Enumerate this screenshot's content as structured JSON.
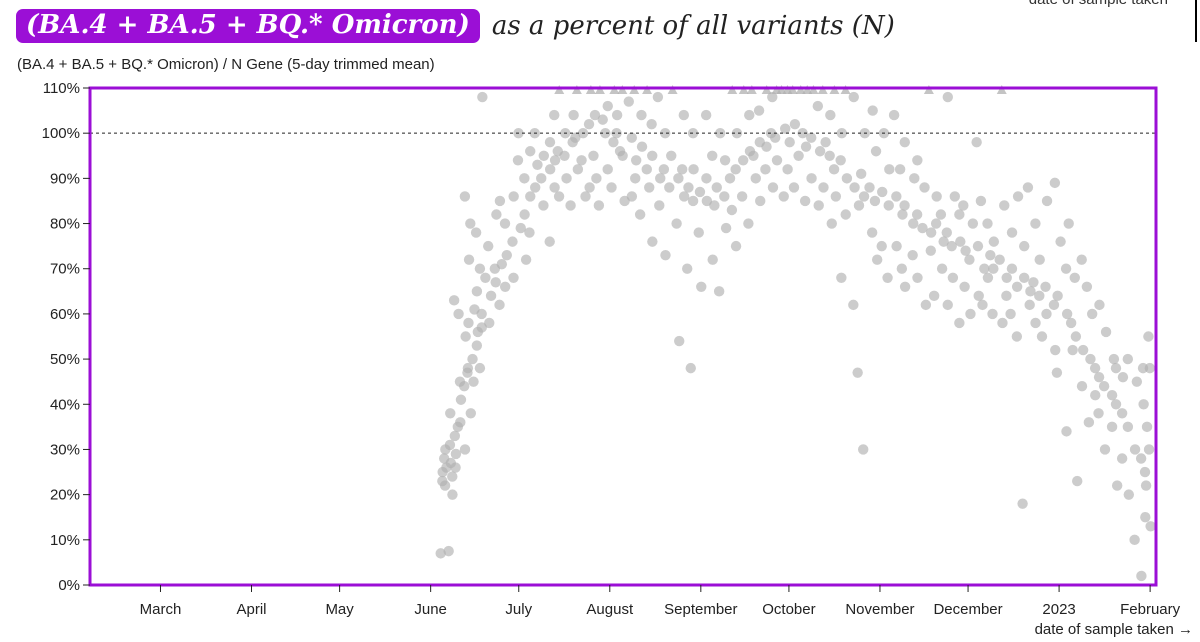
{
  "title": {
    "highlight": "(BA.4 + BA.5 + BQ.* Omicron)",
    "rest": "as a percent of all variants (N)"
  },
  "top_cut_label": "date of sample taken",
  "chart_data": {
    "type": "scatter",
    "title": "(BA.4 + BA.5 + BQ.* Omicron) as a percent of all variants (N)",
    "ylabel": "(BA.4 + BA.5 + BQ.* Omicron) / N Gene (5-day trimmed mean)",
    "xlabel": "date of sample taken →",
    "x_unit": "days since 2022-03-01",
    "xlim": [
      -24,
      339
    ],
    "ylim": [
      0,
      110
    ],
    "reference_line": 100,
    "cap_note": "values at 110% are clipped and drawn as triangles",
    "yticks": [
      {
        "v": 0,
        "label": "0%"
      },
      {
        "v": 10,
        "label": "10%"
      },
      {
        "v": 20,
        "label": "20%"
      },
      {
        "v": 30,
        "label": "30%"
      },
      {
        "v": 40,
        "label": "40%"
      },
      {
        "v": 50,
        "label": "50%"
      },
      {
        "v": 60,
        "label": "60%"
      },
      {
        "v": 70,
        "label": "70%"
      },
      {
        "v": 80,
        "label": "80%"
      },
      {
        "v": 90,
        "label": "90%"
      },
      {
        "v": 100,
        "label": "100%"
      },
      {
        "v": 110,
        "label": "110%"
      }
    ],
    "xticks": [
      {
        "d": 0,
        "label": "March"
      },
      {
        "d": 31,
        "label": "April"
      },
      {
        "d": 61,
        "label": "May"
      },
      {
        "d": 92,
        "label": "June"
      },
      {
        "d": 122,
        "label": "July"
      },
      {
        "d": 153,
        "label": "August"
      },
      {
        "d": 184,
        "label": "September"
      },
      {
        "d": 214,
        "label": "October"
      },
      {
        "d": 245,
        "label": "November"
      },
      {
        "d": 275,
        "label": "December"
      },
      {
        "d": 306,
        "label": "2023"
      },
      {
        "d": 337,
        "label": "February"
      }
    ],
    "colors": {
      "frame": "#9b0fd6",
      "points": "#b0b0b0"
    },
    "points": [
      [
        96,
        [
          23,
          25,
          7
        ]
      ],
      [
        97,
        [
          28,
          22,
          30
        ]
      ],
      [
        98,
        [
          26,
          31,
          7.5
        ]
      ],
      [
        99,
        [
          27,
          38,
          20
        ]
      ],
      [
        100,
        [
          33,
          24,
          63
        ]
      ],
      [
        101,
        [
          29,
          35,
          26
        ]
      ],
      [
        102,
        [
          36,
          45,
          60
        ]
      ],
      [
        103,
        [
          41,
          86,
          30
        ]
      ],
      [
        104,
        [
          44,
          55,
          48
        ]
      ],
      [
        105,
        [
          47,
          58,
          72
        ]
      ],
      [
        106,
        [
          50,
          38,
          80
        ]
      ],
      [
        107,
        [
          53,
          61,
          45
        ]
      ],
      [
        108,
        [
          56,
          65,
          78
        ]
      ],
      [
        109,
        [
          57,
          48,
          70
        ]
      ],
      [
        110,
        [
          60,
          68,
          108
        ]
      ],
      [
        112,
        [
          64,
          58,
          75
        ]
      ],
      [
        114,
        [
          67,
          70,
          82
        ]
      ],
      [
        116,
        [
          71,
          62,
          85
        ]
      ],
      [
        118,
        [
          73,
          66,
          80
        ]
      ],
      [
        120,
        [
          76,
          86,
          68
        ]
      ],
      [
        122,
        [
          79,
          94,
          100
        ]
      ],
      [
        124,
        [
          82,
          90,
          72
        ]
      ],
      [
        126,
        [
          86,
          96,
          78
        ]
      ],
      [
        128,
        [
          88,
          93,
          100
        ]
      ],
      [
        130,
        [
          90,
          84,
          95
        ]
      ],
      [
        132,
        [
          92,
          98,
          76
        ]
      ],
      [
        134,
        [
          94,
          88,
          104
        ]
      ],
      [
        136,
        [
          96,
          86,
          110
        ]
      ],
      [
        138,
        [
          95,
          100,
          90
        ]
      ],
      [
        140,
        [
          98,
          84,
          104
        ]
      ],
      [
        142,
        [
          99,
          110,
          92
        ]
      ],
      [
        144,
        [
          100,
          94,
          86
        ]
      ],
      [
        146,
        [
          102,
          110,
          88
        ]
      ],
      [
        148,
        [
          104,
          95,
          90
        ]
      ],
      [
        150,
        [
          103,
          110,
          84
        ]
      ],
      [
        152,
        [
          100,
          106,
          92
        ]
      ],
      [
        154,
        [
          98,
          110,
          88
        ]
      ],
      [
        156,
        [
          96,
          104,
          100
        ]
      ],
      [
        158,
        [
          95,
          110,
          85
        ]
      ],
      [
        160,
        [
          99,
          86,
          107
        ]
      ],
      [
        162,
        [
          94,
          110,
          90
        ]
      ],
      [
        164,
        [
          97,
          82,
          104
        ]
      ],
      [
        166,
        [
          92,
          110,
          88
        ]
      ],
      [
        168,
        [
          95,
          76,
          102
        ]
      ],
      [
        170,
        [
          90,
          108,
          84
        ]
      ],
      [
        172,
        [
          92,
          73,
          100
        ]
      ],
      [
        174,
        [
          88,
          110,
          95
        ]
      ],
      [
        176,
        [
          90,
          80,
          54
        ]
      ],
      [
        178,
        [
          86,
          104,
          92
        ]
      ],
      [
        180,
        [
          88,
          70,
          48
        ]
      ],
      [
        182,
        [
          85,
          100,
          92
        ]
      ],
      [
        184,
        [
          87,
          78,
          66
        ]
      ],
      [
        186,
        [
          90,
          104,
          85
        ]
      ],
      [
        188,
        [
          84,
          72,
          95
        ]
      ],
      [
        190,
        [
          88,
          100,
          65
        ]
      ],
      [
        192,
        [
          86,
          79,
          94
        ]
      ],
      [
        194,
        [
          90,
          110,
          83
        ]
      ],
      [
        196,
        [
          92,
          75,
          100
        ]
      ],
      [
        198,
        [
          94,
          110,
          86
        ]
      ],
      [
        200,
        [
          96,
          80,
          104
        ]
      ],
      [
        202,
        [
          95,
          110,
          90
        ]
      ],
      [
        204,
        [
          98,
          85,
          105
        ]
      ],
      [
        206,
        [
          97,
          110,
          92
        ]
      ],
      [
        208,
        [
          100,
          88,
          108
        ]
      ],
      [
        210,
        [
          99,
          110,
          94
        ]
      ],
      [
        212,
        [
          101,
          86,
          110
        ]
      ],
      [
        214,
        [
          98,
          110,
          92
        ]
      ],
      [
        216,
        [
          102,
          88,
          110
        ]
      ],
      [
        218,
        [
          100,
          110,
          95
        ]
      ],
      [
        220,
        [
          97,
          85,
          110
        ]
      ],
      [
        222,
        [
          99,
          110,
          90
        ]
      ],
      [
        224,
        [
          96,
          84,
          106
        ]
      ],
      [
        226,
        [
          98,
          110,
          88
        ]
      ],
      [
        228,
        [
          95,
          80,
          104
        ]
      ],
      [
        230,
        [
          92,
          110,
          86
        ]
      ],
      [
        232,
        [
          94,
          68,
          100
        ]
      ],
      [
        234,
        [
          90,
          110,
          82
        ]
      ],
      [
        236,
        [
          88,
          62,
          108
        ]
      ],
      [
        238,
        [
          91,
          47,
          84
        ]
      ],
      [
        240,
        [
          86,
          100,
          30
        ]
      ],
      [
        242,
        [
          88,
          78,
          105
        ]
      ],
      [
        244,
        [
          85,
          72,
          96
        ]
      ],
      [
        246,
        [
          87,
          75,
          100
        ]
      ],
      [
        248,
        [
          84,
          68,
          92
        ]
      ],
      [
        250,
        [
          86,
          75,
          104
        ]
      ],
      [
        252,
        [
          82,
          70,
          92
        ]
      ],
      [
        254,
        [
          84,
          66,
          98
        ]
      ],
      [
        256,
        [
          80,
          73,
          90
        ]
      ],
      [
        258,
        [
          82,
          68,
          94
        ]
      ],
      [
        260,
        [
          79,
          62,
          88
        ]
      ],
      [
        262,
        [
          78,
          74,
          110
        ]
      ],
      [
        264,
        [
          80,
          64,
          86
        ]
      ],
      [
        266,
        [
          76,
          70,
          82
        ]
      ],
      [
        268,
        [
          78,
          62,
          108
        ]
      ],
      [
        270,
        [
          75,
          68,
          86
        ]
      ],
      [
        272,
        [
          76,
          58,
          82
        ]
      ],
      [
        274,
        [
          74,
          66,
          84
        ]
      ],
      [
        276,
        [
          72,
          60,
          80
        ]
      ],
      [
        278,
        [
          75,
          64,
          98
        ]
      ],
      [
        280,
        [
          70,
          62,
          85
        ]
      ],
      [
        282,
        [
          73,
          68,
          80
        ]
      ],
      [
        284,
        [
          70,
          60,
          76
        ]
      ],
      [
        286,
        [
          72,
          58,
          110
        ]
      ],
      [
        288,
        [
          68,
          64,
          84
        ]
      ],
      [
        290,
        [
          70,
          60,
          78
        ]
      ],
      [
        292,
        [
          66,
          55,
          86
        ]
      ],
      [
        294,
        [
          68,
          18,
          75
        ]
      ],
      [
        296,
        [
          65,
          62,
          88
        ]
      ],
      [
        298,
        [
          67,
          58,
          80
        ]
      ],
      [
        300,
        [
          64,
          55,
          72
        ]
      ],
      [
        302,
        [
          66,
          60,
          85
        ]
      ],
      [
        304,
        [
          62,
          52,
          89
        ]
      ],
      [
        306,
        [
          64,
          47,
          76
        ]
      ],
      [
        308,
        [
          60,
          34,
          70
        ]
      ],
      [
        310,
        [
          58,
          52,
          80
        ]
      ],
      [
        312,
        [
          55,
          23,
          68
        ]
      ],
      [
        314,
        [
          52,
          44,
          72
        ]
      ],
      [
        316,
        [
          50,
          36,
          66
        ]
      ],
      [
        318,
        [
          48,
          42,
          60
        ]
      ],
      [
        320,
        [
          46,
          38,
          62
        ]
      ],
      [
        322,
        [
          44,
          30,
          56
        ]
      ],
      [
        324,
        [
          42,
          35,
          50
        ]
      ],
      [
        326,
        [
          40,
          22,
          48
        ]
      ],
      [
        328,
        [
          38,
          28,
          46
        ]
      ],
      [
        330,
        [
          35,
          20,
          50
        ]
      ],
      [
        332,
        [
          30,
          10,
          45
        ]
      ],
      [
        334,
        [
          28,
          2,
          48
        ]
      ],
      [
        335,
        [
          25,
          40,
          15
        ]
      ],
      [
        336,
        [
          35,
          22,
          55
        ]
      ],
      [
        337,
        [
          30,
          13,
          48
        ]
      ]
    ]
  }
}
